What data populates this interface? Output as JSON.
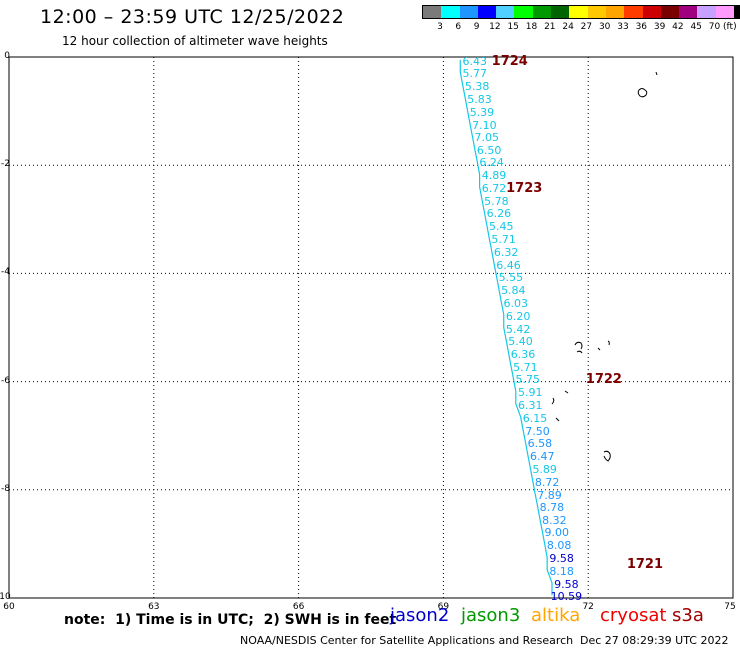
{
  "header": {
    "title": "12:00 – 23:59 UTC 12/25/2022",
    "subtitle": "12 hour collection of altimeter wave heights"
  },
  "colorbar": {
    "colors": [
      "#7a7a7a",
      "#00ffff",
      "#1e96ff",
      "#0000ff",
      "#50d0ff",
      "#00ff00",
      "#009900",
      "#006400",
      "#ffff00",
      "#ffc800",
      "#ffa500",
      "#ff3c00",
      "#cc0000",
      "#7a0000",
      "#a00080",
      "#c8a0ff",
      "#ff9bff",
      "#000000"
    ],
    "ticks": [
      "3",
      "6",
      "9",
      "12",
      "15",
      "18",
      "21",
      "24",
      "27",
      "30",
      "33",
      "36",
      "39",
      "42",
      "45",
      "70"
    ],
    "unit": "(ft)"
  },
  "axes": {
    "y_ticks": [
      "0",
      "-2",
      "-4",
      "-6",
      "-8",
      "-10"
    ],
    "x_ticks": [
      "60",
      "63",
      "66",
      "69",
      "72",
      "75"
    ]
  },
  "track": {
    "color": "#14c8e6",
    "labels": [
      {
        "lon": 69.4,
        "lat": -0.05,
        "value": "6.43",
        "color": "#14c8e6"
      },
      {
        "lon": 69.4,
        "lat": -0.28,
        "value": "5.77",
        "color": "#14c8e6"
      },
      {
        "lon": 69.45,
        "lat": -0.52,
        "value": "5.38",
        "color": "#14c8e6"
      },
      {
        "lon": 69.5,
        "lat": -0.75,
        "value": "5.83",
        "color": "#14c8e6"
      },
      {
        "lon": 69.55,
        "lat": -0.99,
        "value": "5.39",
        "color": "#14c8e6"
      },
      {
        "lon": 69.6,
        "lat": -1.23,
        "value": "7.10",
        "color": "#14c8e6"
      },
      {
        "lon": 69.65,
        "lat": -1.46,
        "value": "7.05",
        "color": "#14c8e6"
      },
      {
        "lon": 69.7,
        "lat": -1.7,
        "value": "6.50",
        "color": "#14c8e6"
      },
      {
        "lon": 69.75,
        "lat": -1.93,
        "value": "6.24",
        "color": "#14c8e6"
      },
      {
        "lon": 69.8,
        "lat": -2.17,
        "value": "4.89",
        "color": "#14c8e6"
      },
      {
        "lon": 69.8,
        "lat": -2.4,
        "value": "6.72",
        "color": "#14c8e6"
      },
      {
        "lon": 69.85,
        "lat": -2.64,
        "value": "5.78",
        "color": "#14c8e6"
      },
      {
        "lon": 69.9,
        "lat": -2.87,
        "value": "6.26",
        "color": "#14c8e6"
      },
      {
        "lon": 69.95,
        "lat": -3.11,
        "value": "5.45",
        "color": "#14c8e6"
      },
      {
        "lon": 70.0,
        "lat": -3.35,
        "value": "5.71",
        "color": "#14c8e6"
      },
      {
        "lon": 70.05,
        "lat": -3.58,
        "value": "6.32",
        "color": "#14c8e6"
      },
      {
        "lon": 70.1,
        "lat": -3.82,
        "value": "6.46",
        "color": "#14c8e6"
      },
      {
        "lon": 70.15,
        "lat": -4.05,
        "value": "5.55",
        "color": "#14c8e6"
      },
      {
        "lon": 70.2,
        "lat": -4.29,
        "value": "5.84",
        "color": "#14c8e6"
      },
      {
        "lon": 70.25,
        "lat": -4.53,
        "value": "6.03",
        "color": "#14c8e6"
      },
      {
        "lon": 70.3,
        "lat": -4.76,
        "value": "6.20",
        "color": "#14c8e6"
      },
      {
        "lon": 70.3,
        "lat": -5.0,
        "value": "5.42",
        "color": "#14c8e6"
      },
      {
        "lon": 70.35,
        "lat": -5.23,
        "value": "5.40",
        "color": "#14c8e6"
      },
      {
        "lon": 70.4,
        "lat": -5.47,
        "value": "6.36",
        "color": "#14c8e6"
      },
      {
        "lon": 70.45,
        "lat": -5.71,
        "value": "5.71",
        "color": "#14c8e6"
      },
      {
        "lon": 70.5,
        "lat": -5.94,
        "value": "5.75",
        "color": "#14c8e6"
      },
      {
        "lon": 70.55,
        "lat": -6.18,
        "value": "5.91",
        "color": "#14c8e6"
      },
      {
        "lon": 70.55,
        "lat": -6.41,
        "value": "6.31",
        "color": "#14c8e6"
      },
      {
        "lon": 70.65,
        "lat": -6.65,
        "value": "6.15",
        "color": "#14c8e6"
      },
      {
        "lon": 70.7,
        "lat": -6.89,
        "value": "7.50",
        "color": "#1e96ff"
      },
      {
        "lon": 70.75,
        "lat": -7.12,
        "value": "6.58",
        "color": "#1e96ff"
      },
      {
        "lon": 70.8,
        "lat": -7.36,
        "value": "6.47",
        "color": "#1e96ff"
      },
      {
        "lon": 70.85,
        "lat": -7.59,
        "value": "5.89",
        "color": "#14c8e6"
      },
      {
        "lon": 70.9,
        "lat": -7.83,
        "value": "8.72",
        "color": "#1e96ff"
      },
      {
        "lon": 70.95,
        "lat": -8.07,
        "value": "7.89",
        "color": "#1e96ff"
      },
      {
        "lon": 71.0,
        "lat": -8.3,
        "value": "8.78",
        "color": "#1e96ff"
      },
      {
        "lon": 71.05,
        "lat": -8.54,
        "value": "8.32",
        "color": "#1e96ff"
      },
      {
        "lon": 71.1,
        "lat": -8.77,
        "value": "9.00",
        "color": "#1e96ff"
      },
      {
        "lon": 71.15,
        "lat": -9.01,
        "value": "8.08",
        "color": "#1e96ff"
      },
      {
        "lon": 71.2,
        "lat": -9.25,
        "value": "9.58",
        "color": "#0000cc"
      },
      {
        "lon": 71.2,
        "lat": -9.48,
        "value": "8.18",
        "color": "#1e96ff"
      },
      {
        "lon": 71.3,
        "lat": -9.72,
        "value": "9.58",
        "color": "#0000cc"
      },
      {
        "lon": 71.3,
        "lat": -9.95,
        "value": "10.59",
        "color": "#0000cc"
      }
    ],
    "passes": [
      {
        "lon": 70.0,
        "lat": -0.05,
        "label": "1724"
      },
      {
        "lon": 70.3,
        "lat": -2.4,
        "label": "1723"
      },
      {
        "lon": 71.95,
        "lat": -5.94,
        "label": "1722"
      },
      {
        "lon": 72.8,
        "lat": -9.35,
        "label": "1721"
      }
    ]
  },
  "footer": {
    "note": "note:  1) Time is in UTC;  2) SWH is in feet",
    "missions": [
      {
        "name": "jason2",
        "color": "#0000cc"
      },
      {
        "name": "jason3",
        "color": "#009900"
      },
      {
        "name": "altika",
        "color": "#ffa500"
      },
      {
        "name": "cryosat",
        "color": "#ee0000"
      },
      {
        "name": "s3a",
        "color": "#a00000"
      }
    ],
    "credit": "NOAA/NESDIS Center for Satellite Applications and Research",
    "timestamp": "Dec 27 08:29:39 UTC 2022"
  }
}
